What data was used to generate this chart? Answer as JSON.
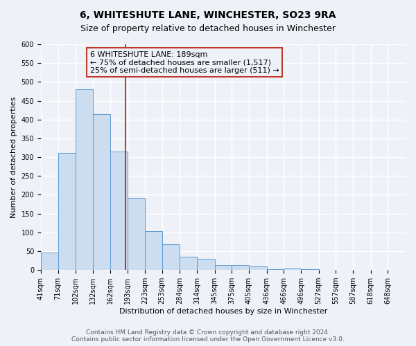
{
  "title": "6, WHITESHUTE LANE, WINCHESTER, SO23 9RA",
  "subtitle": "Size of property relative to detached houses in Winchester",
  "xlabel": "Distribution of detached houses by size in Winchester",
  "ylabel": "Number of detached properties",
  "bin_labels": [
    "41sqm",
    "71sqm",
    "102sqm",
    "132sqm",
    "162sqm",
    "193sqm",
    "223sqm",
    "253sqm",
    "284sqm",
    "314sqm",
    "345sqm",
    "375sqm",
    "405sqm",
    "436sqm",
    "466sqm",
    "496sqm",
    "527sqm",
    "557sqm",
    "587sqm",
    "618sqm",
    "648sqm"
  ],
  "bin_edges": [
    41,
    71,
    102,
    132,
    162,
    193,
    223,
    253,
    284,
    314,
    345,
    375,
    405,
    436,
    466,
    496,
    527,
    557,
    587,
    618,
    648
  ],
  "bar_heights": [
    46,
    311,
    480,
    414,
    315,
    192,
    104,
    69,
    35,
    30,
    14,
    14,
    9,
    2,
    5,
    2,
    1,
    0,
    0,
    1
  ],
  "bar_color": "#ccddf0",
  "bar_edge_color": "#5b9bd5",
  "property_size": 189,
  "property_label": "6 WHITESHUTE LANE: 189sqm",
  "annotation_line1": "← 75% of detached houses are smaller (1,517)",
  "annotation_line2": "25% of semi-detached houses are larger (511) →",
  "vline_color": "#c0392b",
  "annotation_box_edge_color": "#c0392b",
  "ylim": [
    0,
    600
  ],
  "yticks": [
    0,
    50,
    100,
    150,
    200,
    250,
    300,
    350,
    400,
    450,
    500,
    550,
    600
  ],
  "footer_line1": "Contains HM Land Registry data © Crown copyright and database right 2024.",
  "footer_line2": "Contains public sector information licensed under the Open Government Licence v3.0.",
  "background_color": "#eef2f8",
  "plot_bg_color": "#eef2f8",
  "grid_color": "#ffffff",
  "title_fontsize": 10,
  "subtitle_fontsize": 9,
  "axis_label_fontsize": 8,
  "tick_fontsize": 7,
  "annotation_fontsize": 8,
  "footer_fontsize": 6.5
}
